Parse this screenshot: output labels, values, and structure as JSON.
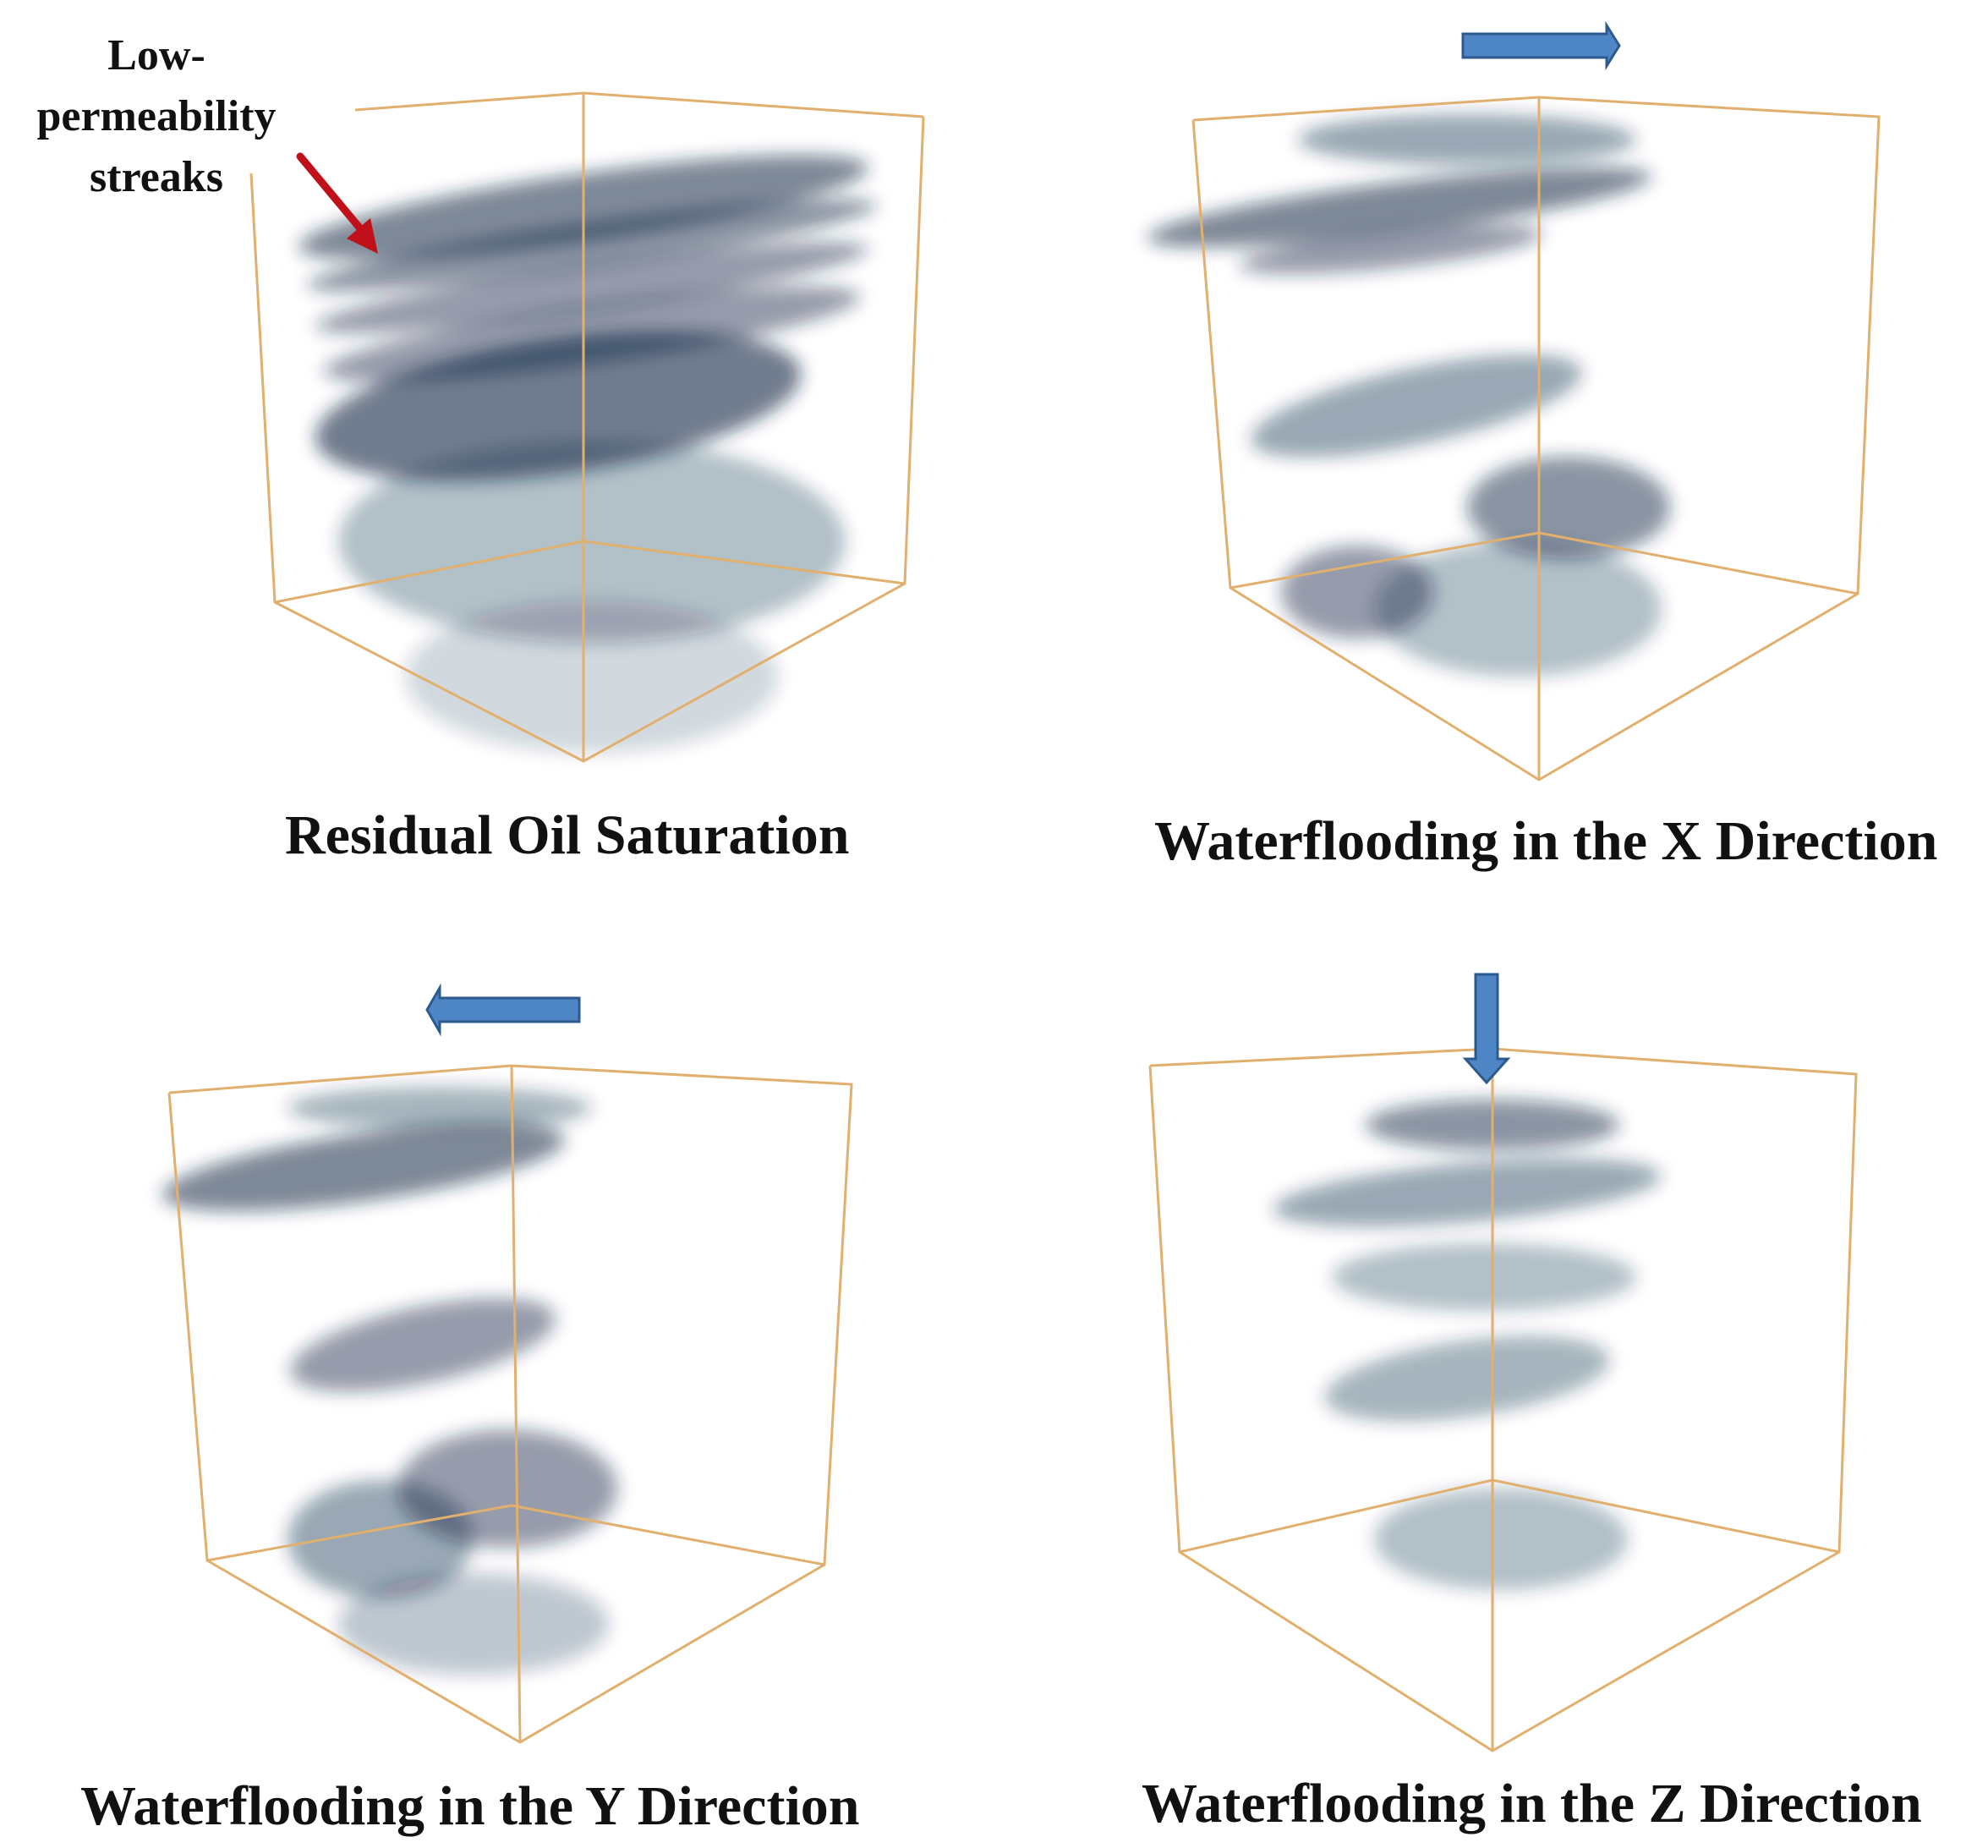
{
  "colors": {
    "cube_edge": "#e2b06e",
    "oil_cluster": "#0f2746",
    "flow_arrow_fill": "#4f86c6",
    "flow_arrow_stroke": "#2d5a8e",
    "annotation_arrow": "#c0101a"
  },
  "annotation": {
    "line1": "Low-",
    "line2": "permeability",
    "line3": "streaks",
    "arrow_icon": "red-arrow-down-right"
  },
  "panels": [
    {
      "id": "residual",
      "caption": "Residual Oil Saturation",
      "flow_arrow_icon": "none"
    },
    {
      "id": "x-direction",
      "caption": "Waterflooding in the X Direction",
      "flow_arrow_icon": "arrow-right-icon"
    },
    {
      "id": "y-direction",
      "caption": "Waterflooding in the Y Direction",
      "flow_arrow_icon": "arrow-left-icon"
    },
    {
      "id": "z-direction",
      "caption": "Waterflooding in the Z Direction",
      "flow_arrow_icon": "arrow-down-icon"
    }
  ]
}
